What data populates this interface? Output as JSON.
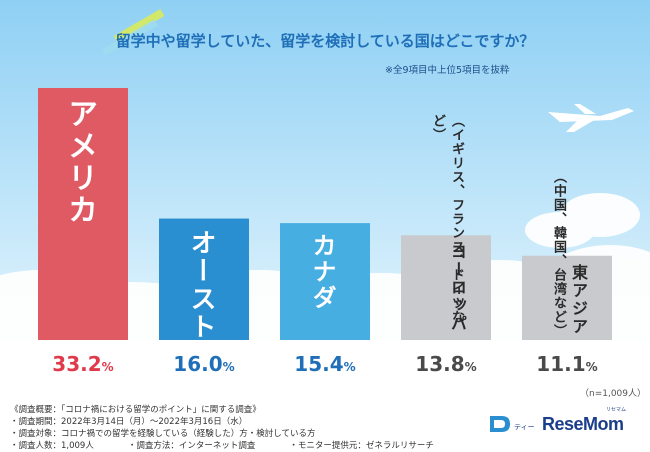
{
  "title": "留学中や留学していた、留学を検討している国はどこですか？",
  "subtitle": "※全9項目中上位5項目を抜粋",
  "sample_note": "（n=1,009人）",
  "footnotes": [
    "《調査概要：「コロナ禍における留学のポイント」に関する調査》",
    "・調査期間：2022年3月14日（月）～2022年3月16日（水）",
    "・調査対象：コロナ禍での留学を経験している（経験した）方・検討している方",
    "・調査人数：1,009人　　　　・調査方法：インターネット調査　　　　・モニター提供元：ゼネラルリサーチ"
  ],
  "logo": {
    "text": "ReseMom",
    "small_text": "ティー",
    "ruby": "リセマム"
  },
  "colors": {
    "sky_top": "#8fd0f4",
    "sky_bottom": "#e2f4fd",
    "bar_red": "#e05a64",
    "bar_blue1": "#2a8fd0",
    "bar_blue2": "#47aee2",
    "bar_gray": "#c8cace",
    "value_red": "#e03a4a",
    "value_blue": "#1f6fb8",
    "value_gray": "#4a4a4a"
  },
  "chart_data": {
    "type": "bar",
    "categories": [
      "アメリカ",
      "オーストラリア",
      "カナダ",
      "ヨーロッパ",
      "東アジア"
    ],
    "sublabels": [
      "",
      "",
      "",
      "（イギリス、フランス、ドイツなど）",
      "（中国、韓国、台湾など）"
    ],
    "values": [
      33.2,
      16.0,
      15.4,
      13.8,
      11.1
    ],
    "unit": "%",
    "value_labels": [
      "33.2",
      "16.0",
      "15.4",
      "13.8",
      "11.1"
    ],
    "ylim": [
      0,
      35
    ],
    "grid": false,
    "legend": "none"
  }
}
